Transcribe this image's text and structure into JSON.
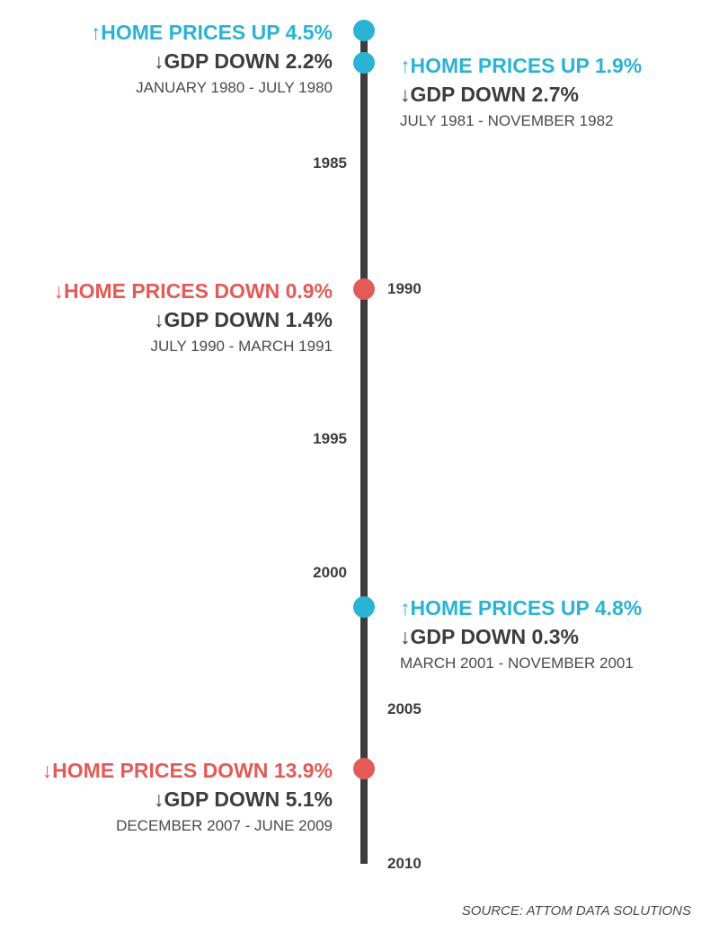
{
  "timeline": {
    "years": [
      "1985",
      "1990",
      "1995",
      "2000",
      "2005",
      "2010"
    ],
    "events": [
      {
        "home_prices": "↑HOME PRICES UP 4.5%",
        "home_direction": "up",
        "gdp": "↓GDP DOWN 2.2%",
        "period": "JANUARY 1980 - JULY 1980"
      },
      {
        "home_prices": "↑HOME PRICES UP 1.9%",
        "home_direction": "up",
        "gdp": "↓GDP DOWN 2.7%",
        "period": "JULY 1981 - NOVEMBER 1982"
      },
      {
        "home_prices": "↓HOME PRICES DOWN 0.9%",
        "home_direction": "down",
        "gdp": "↓GDP DOWN 1.4%",
        "period": "JULY 1990 - MARCH 1991"
      },
      {
        "home_prices": "↑HOME PRICES UP 4.8%",
        "home_direction": "up",
        "gdp": "↓GDP DOWN 0.3%",
        "period": "MARCH 2001 - NOVEMBER 2001"
      },
      {
        "home_prices": "↓HOME PRICES DOWN 13.9%",
        "home_direction": "down",
        "gdp": "↓GDP DOWN 5.1%",
        "period": "DECEMBER 2007 - JUNE 2009"
      }
    ]
  },
  "source": "SOURCE: ATTOM DATA SOLUTIONS",
  "colors": {
    "up": "#2ab3d4",
    "down": "#e45a56",
    "text": "#3d3d3f"
  }
}
